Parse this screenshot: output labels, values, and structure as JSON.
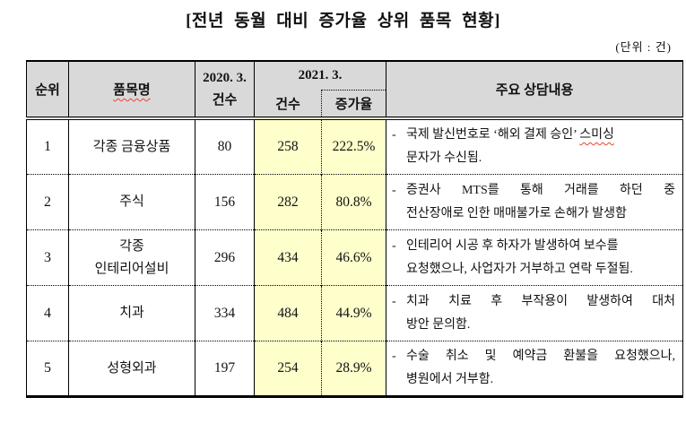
{
  "page": {
    "title": "[전년 동월 대비 증가율 상위 품목 현황]",
    "unit_label": "(단위 : 건)"
  },
  "table": {
    "colors": {
      "header_bg": "#D9D9D9",
      "highlight_bg": "#FFFFCC",
      "border": "#000000",
      "spellcheck_underline": "#E8442E"
    },
    "headers": {
      "rank": "순위",
      "item": "품목명",
      "col_2020": "2020. 3.\n건수",
      "col_2021": "2021. 3.",
      "sub_count": "건수",
      "sub_rate": "증가율",
      "notes": "주요 상담내용"
    },
    "rows": [
      {
        "rank": "1",
        "item_lines": [
          "각종 금융상품"
        ],
        "count_2020": "80",
        "count_2021": "258",
        "rate": "222.5%",
        "bullet": "-",
        "note_lines": [
          {
            "justify": false,
            "segments": [
              {
                "text": "국제 발신번호로 ‘해외 결제 승인’ "
              },
              {
                "text": "스미싱",
                "wavy": true
              }
            ]
          },
          {
            "justify": false,
            "segments": [
              {
                "text": "문자가 수신됨."
              }
            ]
          }
        ]
      },
      {
        "rank": "2",
        "item_lines": [
          "주식"
        ],
        "count_2020": "156",
        "count_2021": "282",
        "rate": "80.8%",
        "bullet": "-",
        "note_lines": [
          {
            "justify": true,
            "segments": [
              {
                "text": "증권사 MTS를 통해 거래를 하던 중"
              }
            ]
          },
          {
            "justify": false,
            "segments": [
              {
                "text": "전산장애로 인한 매매불가로 손해가 발생함"
              }
            ]
          }
        ]
      },
      {
        "rank": "3",
        "item_lines": [
          "각종",
          "인테리어설비"
        ],
        "count_2020": "296",
        "count_2021": "434",
        "rate": "46.6%",
        "bullet": "-",
        "note_lines": [
          {
            "justify": false,
            "segments": [
              {
                "text": "인테리어 시공 후 하자가 발생하여 보수를"
              }
            ]
          },
          {
            "justify": false,
            "segments": [
              {
                "text": "요청했으나, 사업자가 거부하고 연락 두절됨."
              }
            ]
          }
        ]
      },
      {
        "rank": "4",
        "item_lines": [
          "치과"
        ],
        "count_2020": "334",
        "count_2021": "484",
        "rate": "44.9%",
        "bullet": "-",
        "note_lines": [
          {
            "justify": true,
            "segments": [
              {
                "text": "치과 치료 후 부작용이 발생하여 대처"
              }
            ]
          },
          {
            "justify": false,
            "segments": [
              {
                "text": "방안 문의함."
              }
            ]
          }
        ]
      },
      {
        "rank": "5",
        "item_lines": [
          "성형외과"
        ],
        "count_2020": "197",
        "count_2021": "254",
        "rate": "28.9%",
        "bullet": "-",
        "note_lines": [
          {
            "justify": true,
            "segments": [
              {
                "text": "수술 취소 및 예약금 환불을 요청했으나,"
              }
            ]
          },
          {
            "justify": false,
            "segments": [
              {
                "text": "병원에서 거부함."
              }
            ]
          }
        ]
      }
    ]
  }
}
